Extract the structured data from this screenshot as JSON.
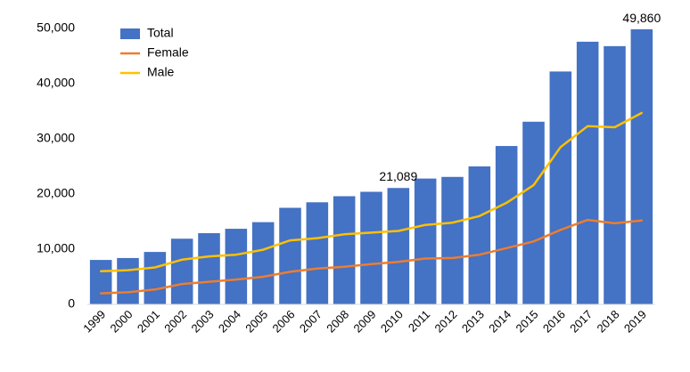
{
  "chart_data": {
    "type": "bar",
    "categories": [
      "1999",
      "2000",
      "2001",
      "2002",
      "2003",
      "2004",
      "2005",
      "2006",
      "2007",
      "2008",
      "2009",
      "2010",
      "2011",
      "2012",
      "2013",
      "2014",
      "2015",
      "2016",
      "2017",
      "2018",
      "2019"
    ],
    "series": [
      {
        "name": "Total",
        "type": "bar",
        "color": "#4472C4",
        "values": [
          8050,
          8400,
          9500,
          11900,
          12900,
          13700,
          14900,
          17500,
          18500,
          19600,
          20400,
          21089,
          22800,
          23100,
          25000,
          28700,
          33100,
          42200,
          47600,
          46800,
          49860
        ]
      },
      {
        "name": "Female",
        "type": "line",
        "color": "#ED7D31",
        "values": [
          2000,
          2200,
          2700,
          3700,
          4100,
          4500,
          5000,
          5900,
          6500,
          6800,
          7300,
          7700,
          8300,
          8400,
          9000,
          10200,
          11400,
          13500,
          15300,
          14700,
          15200
        ]
      },
      {
        "name": "Male",
        "type": "line",
        "color": "#FFC000",
        "values": [
          6000,
          6200,
          6700,
          8100,
          8700,
          9000,
          9900,
          11600,
          12000,
          12700,
          13000,
          13300,
          14400,
          14800,
          16000,
          18400,
          21600,
          28500,
          32300,
          32100,
          34700
        ]
      }
    ],
    "data_labels": [
      {
        "category": "2010",
        "series": "Total",
        "text": "21,089"
      },
      {
        "category": "2019",
        "series": "Total",
        "text": "49,860"
      }
    ],
    "ylim": [
      0,
      50000
    ],
    "yticks": [
      0,
      10000,
      20000,
      30000,
      40000,
      50000
    ],
    "ytick_labels": [
      "0",
      "10,000",
      "20,000",
      "30,000",
      "40,000",
      "50,000"
    ],
    "title": "",
    "xlabel": "",
    "ylabel": "",
    "grid": false,
    "legend_position": "top-left"
  }
}
